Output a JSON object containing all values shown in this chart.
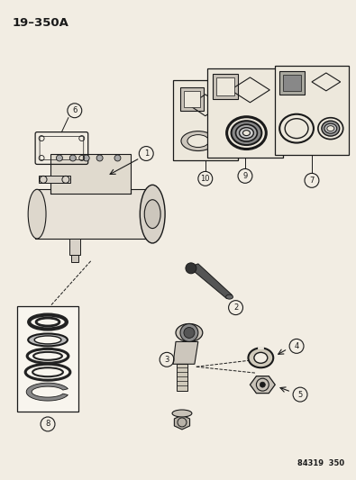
{
  "title": "19–350A",
  "footer": "84319  350",
  "bg_color": "#f2ede3",
  "line_color": "#1a1a1a",
  "fig_width": 3.95,
  "fig_height": 5.33,
  "dpi": 100
}
